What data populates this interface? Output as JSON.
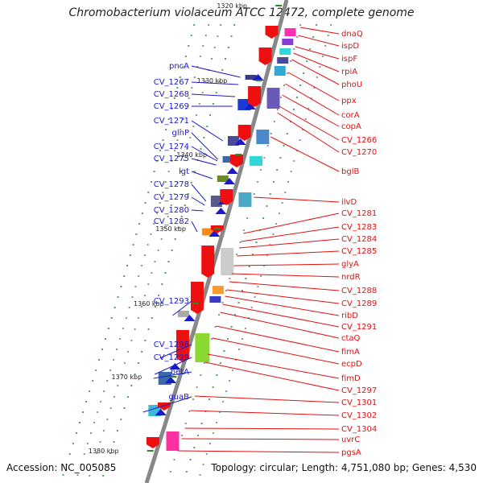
{
  "title": "Chromobacterium violaceum ATCC 12472, complete genome",
  "accession": "Accession: NC_005085",
  "summary": "Topology: circular; Length: 4,751,080 bp; Genes: 4,530",
  "colors": {
    "left_label": "#1a1acc",
    "right_label": "#e01010",
    "backbone": "#888888"
  },
  "ticks": [
    "1320 kbp",
    "1330 kbp",
    "1340 kbp",
    "1350 kbp",
    "1360 kbp",
    "1370 kbp",
    "1380 kbp"
  ],
  "left_genes": [
    "pncA",
    "CV_1267",
    "CV_1268",
    "CV_1269",
    "CV_1271",
    "glnP",
    "CV_1274",
    "CV_1275",
    "lgt",
    "CV_1278",
    "CV_1279",
    "CV_1280",
    "CV_1282",
    "CV_1293",
    "CV_1298",
    "CV_1299",
    "betA",
    "guaB"
  ],
  "right_genes": [
    "dnaQ",
    "ispD",
    "ispF",
    "rpiA",
    "phoU",
    "ppx",
    "corA",
    "copA",
    "CV_1266",
    "CV_1270",
    "bglB",
    "ilvD",
    "CV_1281",
    "CV_1283",
    "CV_1284",
    "CV_1285",
    "glyA",
    "nrdR",
    "CV_1288",
    "CV_1289",
    "ribD",
    "CV_1291",
    "ctaQ",
    "fimA",
    "ecpD",
    "fimD",
    "CV_1297",
    "CV_1301",
    "CV_1302",
    "CV_1304",
    "uvrC",
    "pgsA"
  ]
}
